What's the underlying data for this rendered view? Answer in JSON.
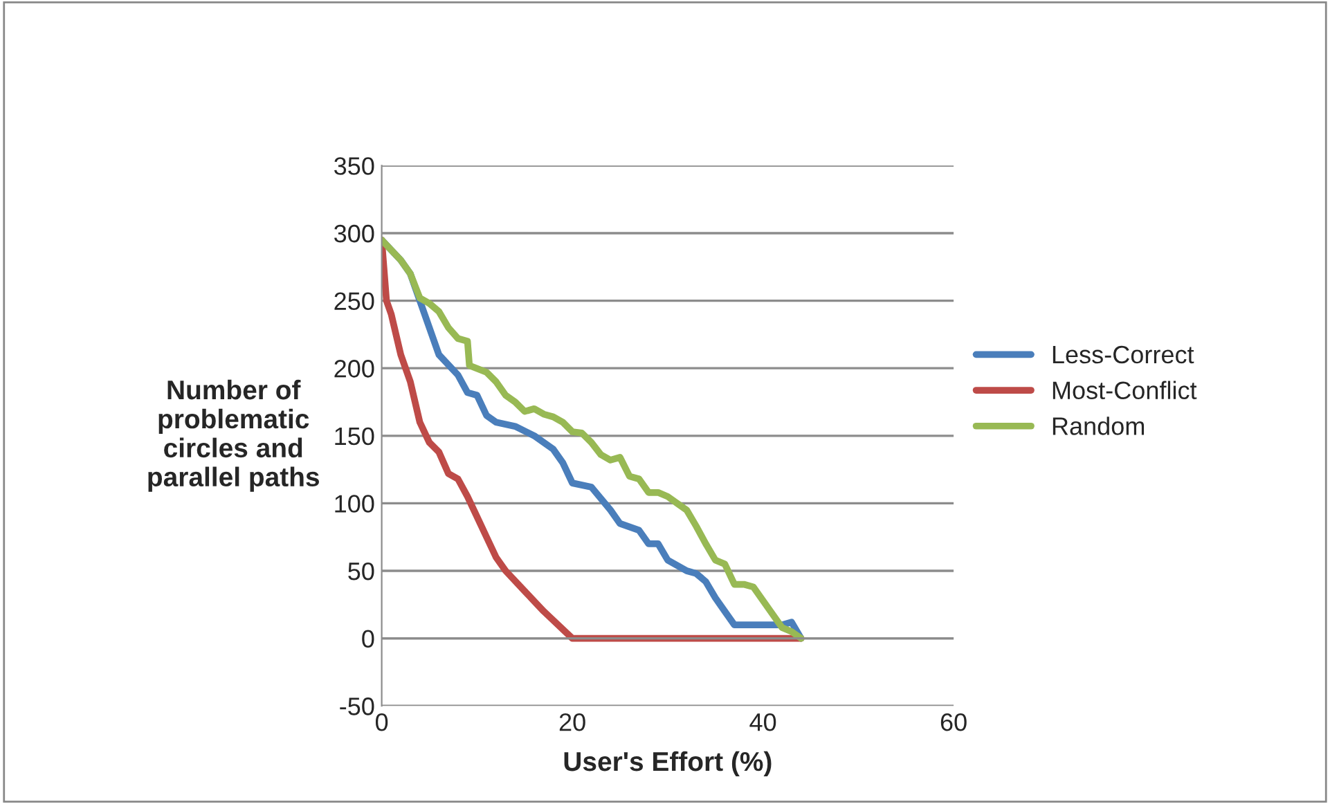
{
  "chart_data": {
    "type": "line",
    "xlabel": "User's Effort (%)",
    "ylabel": "Number of\nproblematic\ncircles and\nparallel paths",
    "xlim": [
      0,
      60
    ],
    "xticks": [
      0,
      20,
      40,
      60
    ],
    "ylim": [
      -50,
      350
    ],
    "yticks": [
      -50,
      0,
      50,
      100,
      150,
      200,
      250,
      300,
      350
    ],
    "grid": "y",
    "legend": "right",
    "marker": "none",
    "line_style": "solid",
    "series": [
      {
        "name": "Less-Correct",
        "color": "#4a7ebb",
        "x": [
          0,
          2,
          3,
          4,
          5,
          6,
          8,
          9,
          10,
          11,
          12,
          14,
          16,
          18,
          19,
          20,
          22,
          24,
          25,
          27,
          28,
          29,
          30,
          32,
          33,
          34,
          35,
          36,
          37,
          42,
          43,
          44
        ],
        "values": [
          295,
          280,
          270,
          250,
          230,
          210,
          195,
          182,
          180,
          165,
          160,
          157,
          150,
          140,
          130,
          115,
          112,
          95,
          85,
          80,
          70,
          70,
          58,
          50,
          48,
          42,
          30,
          20,
          10,
          10,
          12,
          0
        ]
      },
      {
        "name": "Most-Conflict",
        "color": "#be4b48",
        "x": [
          0,
          0.5,
          1,
          2,
          3,
          4,
          5,
          6,
          7,
          8,
          9,
          10,
          11,
          12,
          13,
          15,
          17,
          20,
          44
        ],
        "values": [
          295,
          250,
          240,
          210,
          190,
          160,
          145,
          138,
          122,
          118,
          105,
          90,
          75,
          60,
          50,
          35,
          20,
          0,
          0
        ]
      },
      {
        "name": "Random",
        "color": "#98b954",
        "x": [
          0,
          2,
          3,
          4,
          5,
          6,
          7,
          8,
          9,
          9.2,
          11,
          12,
          13,
          14,
          15,
          16,
          17,
          18,
          19,
          20,
          21,
          22,
          23,
          24,
          25,
          26,
          27,
          28,
          29,
          30,
          31,
          32,
          33,
          34,
          35,
          36,
          37,
          38,
          39,
          40,
          41,
          42,
          43,
          44
        ],
        "values": [
          295,
          280,
          270,
          252,
          248,
          242,
          230,
          222,
          220,
          202,
          197,
          190,
          180,
          175,
          168,
          170,
          166,
          164,
          160,
          153,
          152,
          145,
          136,
          132,
          134,
          120,
          118,
          108,
          108,
          105,
          100,
          95,
          83,
          70,
          58,
          55,
          40,
          40,
          38,
          28,
          18,
          8,
          5,
          0
        ]
      }
    ]
  }
}
